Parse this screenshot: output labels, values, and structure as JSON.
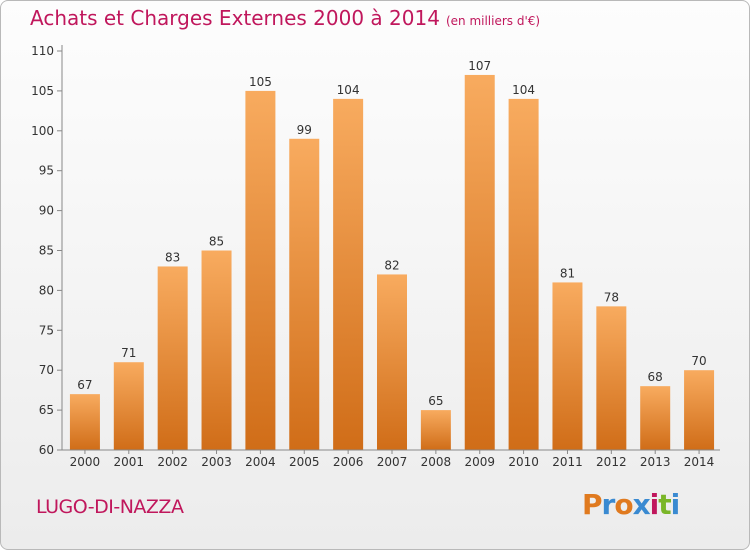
{
  "header": {
    "title": "Achats et Charges Externes 2000 à 2014",
    "unit": "(en milliers d'€)"
  },
  "footer": {
    "commune": "LUGO-DI-NAZZA",
    "logo": "Proxiti"
  },
  "colors": {
    "title": "#c0175c",
    "bar_light": "#f8ab5f",
    "bar_dark": "#d06d18",
    "logo_letters": [
      "#e07a1f",
      "#3a8ad1",
      "#e07a1f",
      "#3a8ad1",
      "#c0175c",
      "#7ab628",
      "#3a8ad1"
    ]
  },
  "chart_data": {
    "type": "bar",
    "categories": [
      "2000",
      "2001",
      "2002",
      "2003",
      "2004",
      "2005",
      "2006",
      "2007",
      "2008",
      "2009",
      "2010",
      "2011",
      "2012",
      "2013",
      "2014"
    ],
    "values": [
      67,
      71,
      83,
      85,
      105,
      99,
      104,
      82,
      65,
      107,
      104,
      81,
      78,
      68,
      70
    ],
    "ylim": [
      60,
      110
    ],
    "yticks": [
      60,
      65,
      70,
      75,
      80,
      85,
      90,
      95,
      100,
      105,
      110
    ],
    "grid": false,
    "legend": "none"
  }
}
